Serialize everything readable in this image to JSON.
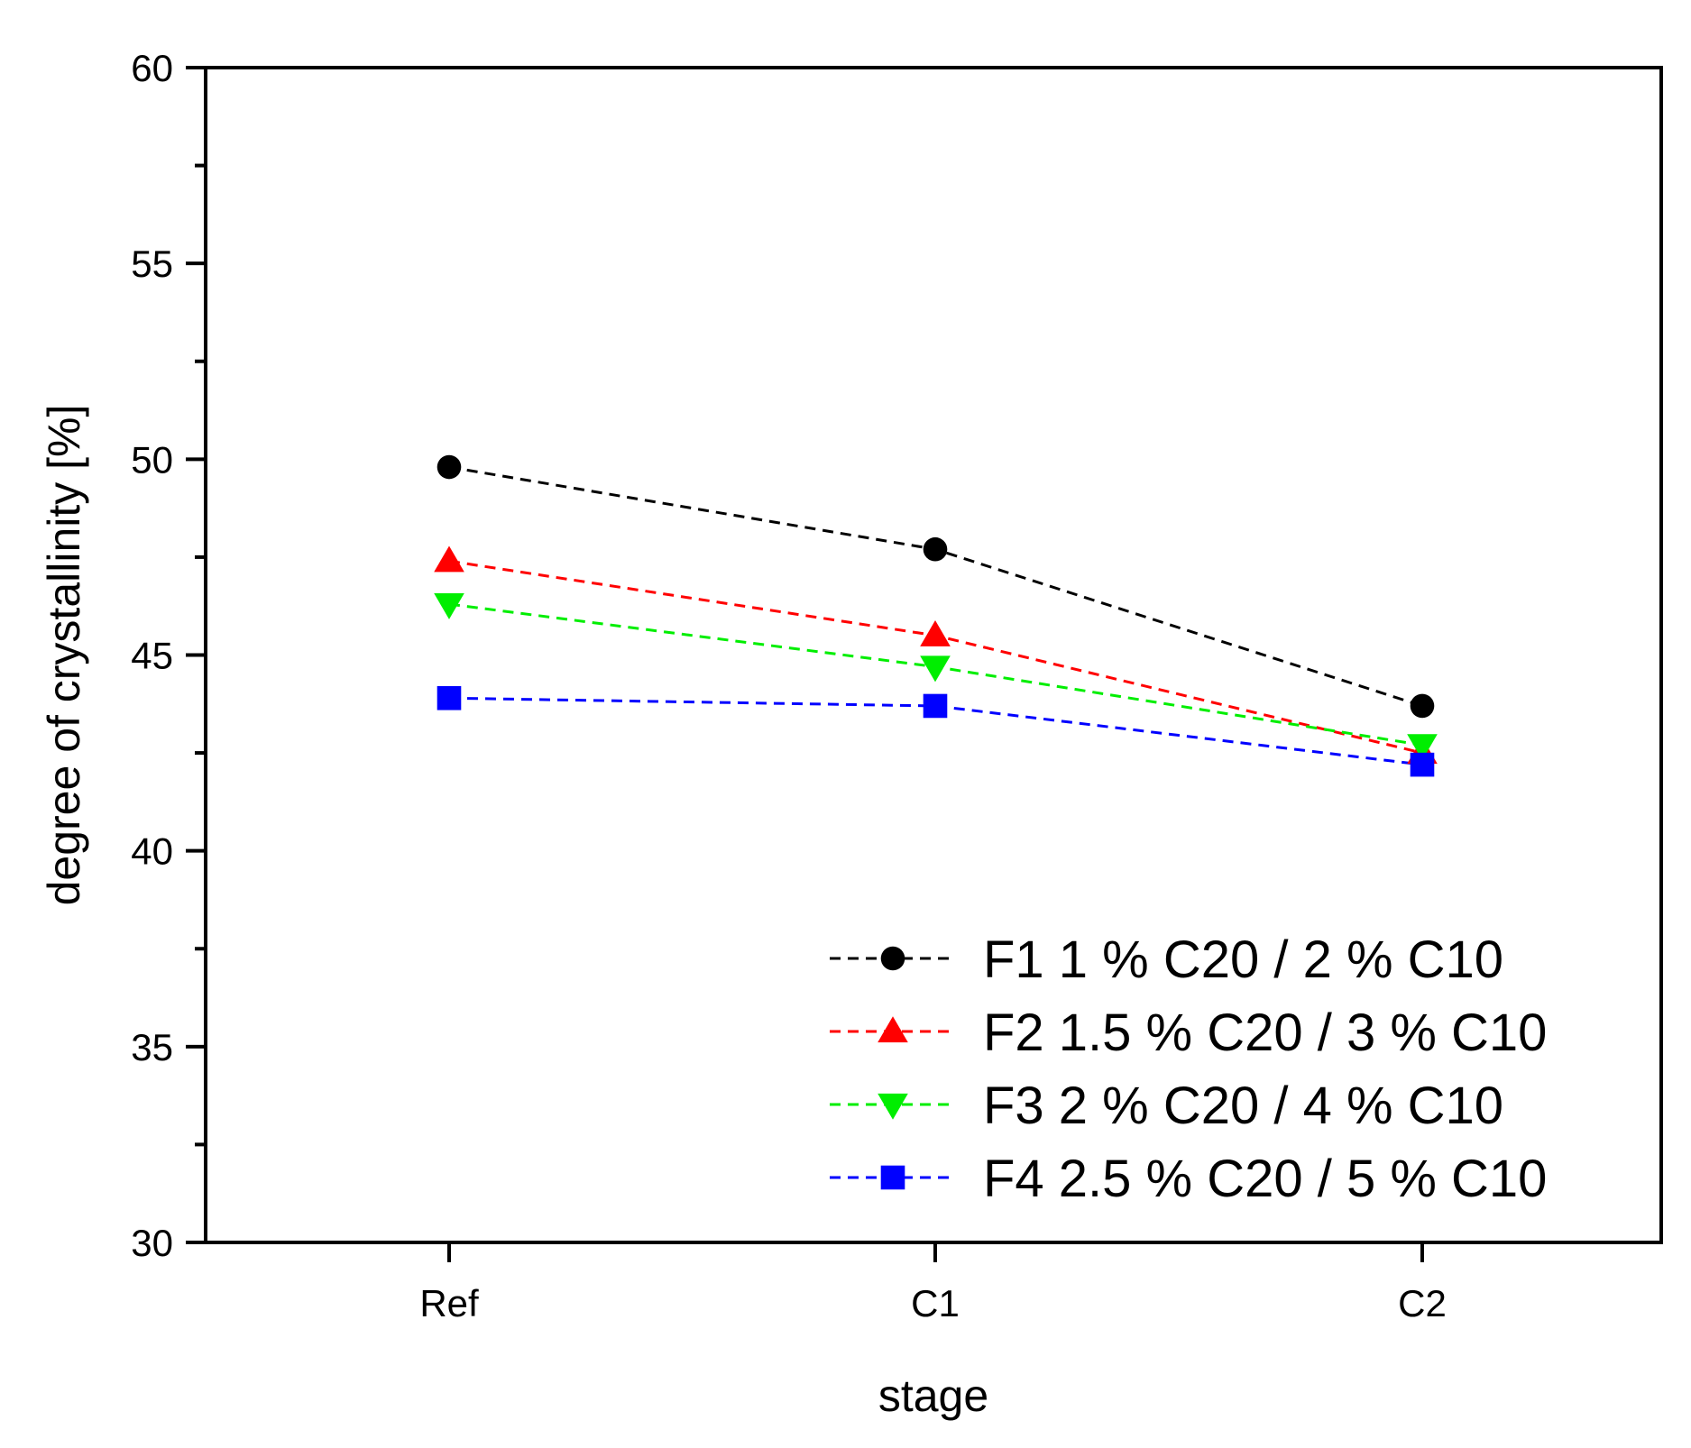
{
  "chart_data": {
    "type": "line",
    "title": "",
    "xlabel": "stage",
    "ylabel": "degree of crystallinity [%]",
    "categories": [
      "Ref",
      "C1",
      "C2"
    ],
    "ylim": [
      30,
      60
    ],
    "yticks": [
      30,
      35,
      40,
      45,
      50,
      55,
      60
    ],
    "grid": false,
    "legend_position": "bottom-right",
    "series": [
      {
        "name": "F1 1 % C20 / 2 % C10",
        "values": [
          49.8,
          47.7,
          43.7
        ],
        "color": "#000000",
        "marker": "circle"
      },
      {
        "name": "F2 1.5 % C20 / 3 % C10",
        "values": [
          47.4,
          45.5,
          42.5
        ],
        "color": "#ff0000",
        "marker": "triangle-up"
      },
      {
        "name": "F3 2 % C20 / 4 % C10",
        "values": [
          46.3,
          44.7,
          42.7
        ],
        "color": "#00ee00",
        "marker": "triangle-down"
      },
      {
        "name": "F4 2.5 % C20 / 5 % C10",
        "values": [
          43.9,
          43.7,
          42.2
        ],
        "color": "#0000ff",
        "marker": "square"
      }
    ]
  }
}
